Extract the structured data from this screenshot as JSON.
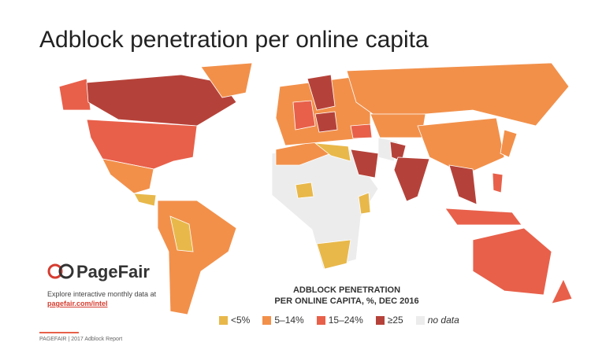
{
  "title": "Adblock penetration per online capita",
  "logo": {
    "name": "PageFair"
  },
  "explore": {
    "text": "Explore interactive monthly data at",
    "link": "pagefair.com/intel"
  },
  "legend": {
    "title_lines": [
      "ADBLOCK PENETRATION",
      "PER ONLINE CAPITA, %, DEC 2016"
    ],
    "items": [
      {
        "label": "<5%",
        "color": "#e8b84a"
      },
      {
        "label": "5–14%",
        "color": "#f2904a"
      },
      {
        "label": "15–24%",
        "color": "#e8604a"
      },
      {
        "label": "≥25",
        "color": "#b5423a"
      },
      {
        "label": "no data",
        "color": "#ececec"
      }
    ]
  },
  "footer": "PAGEFAIR | 2017 Adblock Report"
}
